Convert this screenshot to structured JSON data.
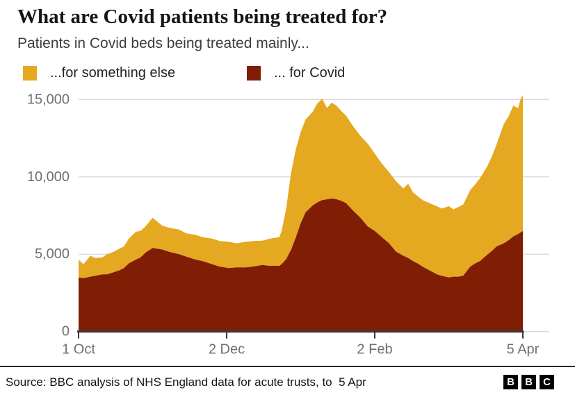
{
  "header": {
    "title": "What are Covid patients being treated for?",
    "subtitle": "Patients in Covid beds being treated mainly..."
  },
  "legend": [
    {
      "label": "...for something else",
      "color": "#E5A821"
    },
    {
      "label": "... for Covid",
      "color": "#7F1E04"
    }
  ],
  "footer": {
    "source": "Source: BBC analysis of NHS England data for acute trusts, to  5 Apr",
    "logo_letters": [
      "B",
      "B",
      "C"
    ]
  },
  "chart_data": {
    "type": "area",
    "stacked": true,
    "title": "Patients in Covid beds being treated mainly...",
    "xlabel": "",
    "ylabel": "",
    "x_unit": "days since 1 Oct",
    "x_range_days": 186,
    "ylim": [
      0,
      15400
    ],
    "grid": true,
    "legend_position": "top",
    "x_ticks": [
      {
        "label": "1 Oct",
        "day": 0
      },
      {
        "label": "2 Dec",
        "day": 62
      },
      {
        "label": "2 Feb",
        "day": 124
      },
      {
        "label": "5 Apr",
        "day": 186
      }
    ],
    "y_ticks": [
      0,
      5000,
      10000,
      15000
    ],
    "y_tick_labels": [
      "0",
      "5,000",
      "10,000",
      "15,000"
    ],
    "days": [
      0,
      2,
      5,
      7,
      10,
      12,
      14,
      17,
      19,
      21,
      24,
      26,
      28,
      31,
      33,
      35,
      38,
      42,
      45,
      49,
      52,
      56,
      59,
      63,
      66,
      70,
      73,
      77,
      80,
      84,
      85,
      87,
      88,
      89,
      91,
      93,
      95,
      98,
      100,
      102,
      104,
      106,
      108,
      110,
      112,
      115,
      118,
      121,
      124,
      127,
      130,
      133,
      136,
      138,
      140,
      142,
      144,
      147,
      150,
      152,
      155,
      157,
      159,
      161,
      164,
      166,
      168,
      171,
      173,
      175,
      178,
      180,
      182,
      184,
      185,
      186
    ],
    "series": [
      {
        "name": "... for Covid",
        "color": "#7F1E04",
        "values": [
          3500,
          3450,
          3550,
          3600,
          3700,
          3700,
          3800,
          3950,
          4100,
          4400,
          4650,
          4800,
          5100,
          5400,
          5350,
          5300,
          5150,
          5000,
          4850,
          4650,
          4550,
          4350,
          4200,
          4100,
          4150,
          4150,
          4200,
          4300,
          4250,
          4250,
          4350,
          4700,
          5000,
          5300,
          6100,
          7000,
          7700,
          8150,
          8350,
          8500,
          8550,
          8600,
          8550,
          8450,
          8300,
          7800,
          7350,
          6800,
          6500,
          6100,
          5700,
          5150,
          4900,
          4750,
          4550,
          4400,
          4200,
          3950,
          3700,
          3600,
          3500,
          3550,
          3550,
          3600,
          4200,
          4400,
          4550,
          4950,
          5200,
          5500,
          5700,
          5900,
          6150,
          6300,
          6400,
          6500
        ]
      },
      {
        "name": "...for something else",
        "color": "#E5A821",
        "values": [
          1150,
          900,
          1350,
          1150,
          1100,
          1300,
          1300,
          1400,
          1400,
          1600,
          1800,
          1700,
          1700,
          1950,
          1750,
          1550,
          1550,
          1600,
          1500,
          1600,
          1550,
          1650,
          1650,
          1700,
          1550,
          1650,
          1650,
          1570,
          1750,
          1850,
          2150,
          3300,
          4200,
          5000,
          5700,
          5900,
          6000,
          6050,
          6400,
          6550,
          5900,
          6200,
          6050,
          5800,
          5650,
          5450,
          5300,
          5350,
          5000,
          4750,
          4600,
          4550,
          4350,
          4800,
          4450,
          4350,
          4300,
          4350,
          4400,
          4350,
          4600,
          4350,
          4500,
          4600,
          4950,
          5100,
          5350,
          5700,
          6100,
          6600,
          7700,
          8000,
          8450,
          8150,
          8600,
          8780
        ]
      }
    ],
    "geometry_note": "covid series stacked at bottom, something-else on top; top edge of gold = total patients"
  },
  "style": {
    "grid_color": "#D9D9D9",
    "axis_color": "#3A3A3A",
    "tick_label_color": "#6F6F6F"
  }
}
